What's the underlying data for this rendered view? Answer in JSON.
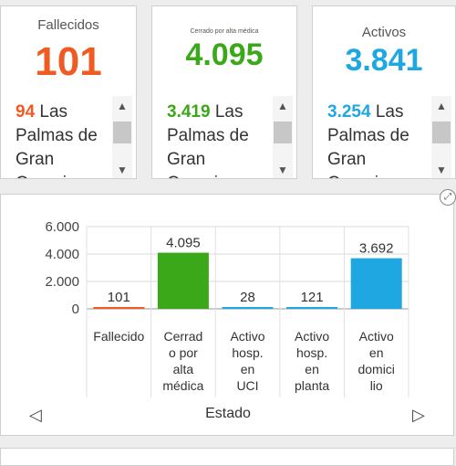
{
  "cards": [
    {
      "title": "Fallecidos",
      "value": "101",
      "color": "#f05a23",
      "item_num": "94",
      "item_text": "Las Palmas de Gran Canaria"
    },
    {
      "title": "Cerrado por alta médica",
      "value": "4.095",
      "color": "#3aa818",
      "item_num": "3.419",
      "item_text": "Las Palmas de Gran Canaria"
    },
    {
      "title": "Activos",
      "value": "3.841",
      "color": "#1ea7e1",
      "item_num": "3.254",
      "item_text": "Las Palmas de Gran Canaria"
    }
  ],
  "chart_data": {
    "type": "bar",
    "categories": [
      "Fallecido",
      "Cerrado por alta médica",
      "Activo hosp. en UCI",
      "Activo hosp. en planta",
      "Activo en domicilio"
    ],
    "values": [
      101,
      4095,
      28,
      121,
      3692
    ],
    "value_labels": [
      "101",
      "4.095",
      "28",
      "121",
      "3.692"
    ],
    "colors": [
      "#f05a23",
      "#3aa818",
      "#1ea7e1",
      "#1ea7e1",
      "#1ea7e1"
    ],
    "category_label_lines": [
      [
        "Fallecido"
      ],
      [
        "Cerrad",
        "o por",
        "alta",
        "médica"
      ],
      [
        "Activo",
        "hosp.",
        "en",
        "UCI"
      ],
      [
        "Activo",
        "hosp.",
        "en",
        "planta"
      ],
      [
        "Activo",
        "en",
        "domici",
        "lio"
      ]
    ],
    "ytick_values": [
      0,
      2000,
      4000,
      6000
    ],
    "ytick_labels": [
      "0",
      "2.000",
      "4.000",
      "6.000"
    ],
    "ylim": [
      0,
      6000
    ],
    "xlabel": "Estado",
    "grid": true
  },
  "nav": {
    "prev": "◁",
    "next": "▷"
  },
  "expand_icon": "⤢"
}
